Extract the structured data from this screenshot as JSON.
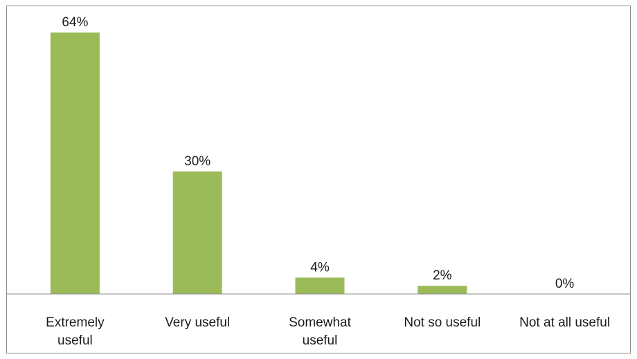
{
  "chart_data": {
    "type": "bar",
    "categories": [
      [
        "Extremely",
        "useful"
      ],
      [
        "Very useful"
      ],
      [
        "Somewhat",
        "useful"
      ],
      [
        "Not so useful"
      ],
      [
        "Not at all useful"
      ]
    ],
    "values": [
      64,
      30,
      4,
      2,
      0
    ],
    "data_labels": [
      "64%",
      "30%",
      "4%",
      "2%",
      "0%"
    ],
    "unit": "%",
    "ylim": [
      0,
      64
    ],
    "bar_color": "#9bbb59",
    "axis_color": "#8c8c8c",
    "grid": false,
    "legend": "none"
  }
}
